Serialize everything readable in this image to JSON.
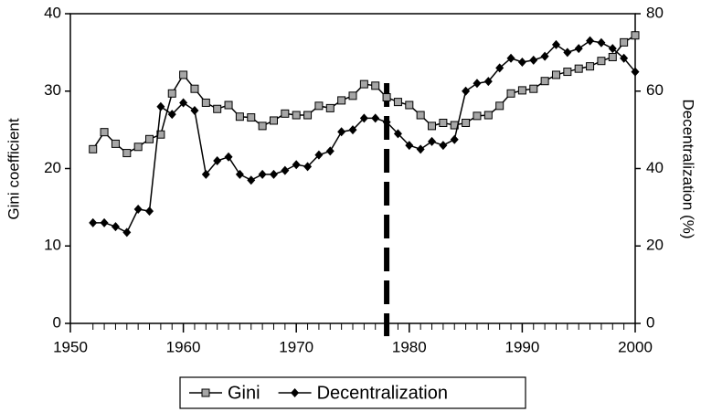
{
  "chart_data": {
    "type": "line",
    "x": [
      1952,
      1953,
      1954,
      1955,
      1956,
      1957,
      1958,
      1959,
      1960,
      1961,
      1962,
      1963,
      1964,
      1965,
      1966,
      1967,
      1968,
      1969,
      1970,
      1971,
      1972,
      1973,
      1974,
      1975,
      1976,
      1977,
      1978,
      1979,
      1980,
      1981,
      1982,
      1983,
      1984,
      1985,
      1986,
      1987,
      1988,
      1989,
      1990,
      1991,
      1992,
      1993,
      1994,
      1995,
      1996,
      1997,
      1998,
      1999,
      2000
    ],
    "series": [
      {
        "name": "Gini",
        "color": "#a6a6a6",
        "marker": "square",
        "values": [
          22.5,
          24.7,
          23.2,
          22.0,
          22.8,
          23.8,
          24.4,
          29.7,
          32.1,
          30.3,
          28.5,
          27.7,
          28.2,
          26.7,
          26.6,
          25.5,
          26.2,
          27.1,
          26.9,
          26.9,
          28.1,
          27.8,
          28.8,
          29.4,
          30.9,
          30.7,
          29.2,
          28.6,
          28.2,
          26.9,
          25.5,
          25.9,
          25.6,
          25.9,
          26.8,
          26.9,
          28.1,
          29.7,
          30.1,
          30.3,
          31.3,
          32.1,
          32.5,
          32.9,
          33.2,
          33.9,
          34.4,
          36.3,
          37.2
        ]
      },
      {
        "name": "Decentralization",
        "color": "#000000",
        "marker": "diamond",
        "axis": "y2",
        "values": [
          26,
          26,
          25,
          23.5,
          29.5,
          29,
          56,
          54,
          57,
          55,
          38.5,
          42,
          43,
          38.5,
          37,
          38.5,
          38.5,
          39.5,
          41,
          40.5,
          43.5,
          44.5,
          49.5,
          50,
          53,
          53,
          52,
          49,
          46,
          45,
          47,
          46,
          47.5,
          60,
          62,
          62.5,
          66,
          68.5,
          67.5,
          68,
          69,
          72,
          70,
          71,
          73,
          72.5,
          71,
          68.5,
          65
        ]
      }
    ],
    "xlim": [
      1950,
      2000
    ],
    "xticks": [
      1950,
      1960,
      1970,
      1980,
      1990,
      2000
    ],
    "ylim": [
      0,
      40
    ],
    "yticks": [
      0,
      10,
      20,
      30,
      40
    ],
    "y2lim": [
      0,
      80
    ],
    "y2ticks": [
      0,
      20,
      40,
      60,
      80
    ],
    "ylabel": "Gini coefficient",
    "y2label": "Decentralization (%)",
    "vline": 1978,
    "legend": "bottom"
  }
}
